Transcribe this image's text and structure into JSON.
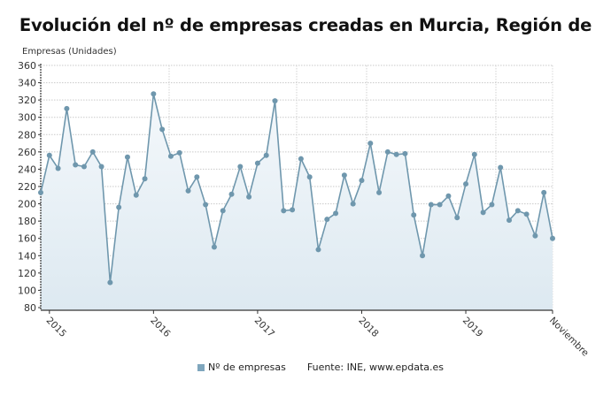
{
  "chart_data": {
    "type": "area",
    "title": "Evolución del nº de empresas creadas en Murcia, Región de",
    "ylabel": "Empresas (Unidades)",
    "xlabel": "",
    "ylim": [
      80,
      360
    ],
    "yticks": [
      80,
      100,
      120,
      140,
      160,
      180,
      200,
      220,
      240,
      260,
      280,
      300,
      320,
      340,
      360
    ],
    "xtick_labels": [
      "2015",
      "2016",
      "2017",
      "2018",
      "2019",
      "Noviembre"
    ],
    "xtick_index": [
      1,
      13,
      25,
      37,
      49,
      59
    ],
    "grid": true,
    "legend_position": "bottom",
    "series": [
      {
        "name": "Nº de empresas",
        "color": "#6f97ad",
        "values": [
          213,
          256,
          241,
          310,
          245,
          243,
          260,
          243,
          109,
          196,
          254,
          210,
          229,
          327,
          286,
          255,
          259,
          215,
          231,
          199,
          150,
          192,
          211,
          243,
          208,
          247,
          256,
          319,
          192,
          193,
          252,
          231,
          147,
          182,
          189,
          233,
          200,
          227,
          270,
          213,
          260,
          257,
          258,
          187,
          140,
          199,
          199,
          209,
          184,
          223,
          257,
          190,
          199,
          242,
          181,
          192,
          188,
          163,
          213,
          160
        ]
      }
    ]
  },
  "header": {
    "title": "Evolución del nº de empresas creadas en Murcia, Región de",
    "ylabel": "Empresas (Unidades)"
  },
  "legend": {
    "series_label": "Nº de empresas",
    "source": "Fuente: INE, www.epdata.es"
  }
}
